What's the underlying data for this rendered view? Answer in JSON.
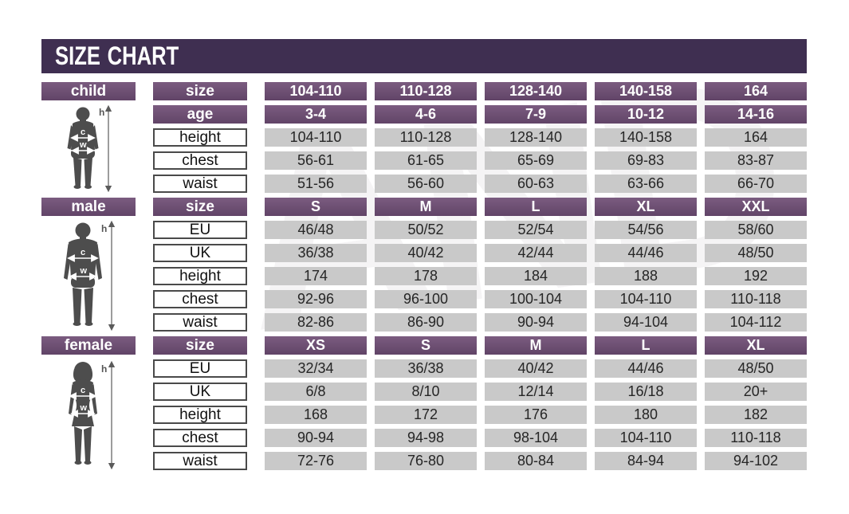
{
  "title": "SIZE CHART",
  "watermark": "AND",
  "colors": {
    "title_bar": "#3F2F51",
    "header_cell": "#6F5173",
    "value_cell": "#C9C9C9",
    "silhouette": "#4D4D4D"
  },
  "figure_annotations": {
    "height_label": "h",
    "chest_label": "c",
    "waist_label": "w"
  },
  "sections": [
    {
      "name": "child",
      "rows": [
        {
          "label": "size",
          "style": "purple",
          "values": [
            "104-110",
            "110-128",
            "128-140",
            "140-158",
            "164"
          ]
        },
        {
          "label": "age",
          "style": "purple",
          "values": [
            "3-4",
            "4-6",
            "7-9",
            "10-12",
            "14-16"
          ]
        },
        {
          "label": "height",
          "style": "plain",
          "values": [
            "104-110",
            "110-128",
            "128-140",
            "140-158",
            "164"
          ]
        },
        {
          "label": "chest",
          "style": "plain",
          "values": [
            "56-61",
            "61-65",
            "65-69",
            "69-83",
            "83-87"
          ]
        },
        {
          "label": "waist",
          "style": "plain",
          "values": [
            "51-56",
            "56-60",
            "60-63",
            "63-66",
            "66-70"
          ]
        }
      ]
    },
    {
      "name": "male",
      "rows": [
        {
          "label": "size",
          "style": "purple",
          "values": [
            "S",
            "M",
            "L",
            "XL",
            "XXL"
          ]
        },
        {
          "label": "EU",
          "style": "plain",
          "values": [
            "46/48",
            "50/52",
            "52/54",
            "54/56",
            "58/60"
          ]
        },
        {
          "label": "UK",
          "style": "plain",
          "values": [
            "36/38",
            "40/42",
            "42/44",
            "44/46",
            "48/50"
          ]
        },
        {
          "label": "height",
          "style": "plain",
          "values": [
            "174",
            "178",
            "184",
            "188",
            "192"
          ]
        },
        {
          "label": "chest",
          "style": "plain",
          "values": [
            "92-96",
            "96-100",
            "100-104",
            "104-110",
            "110-118"
          ]
        },
        {
          "label": "waist",
          "style": "plain",
          "values": [
            "82-86",
            "86-90",
            "90-94",
            "94-104",
            "104-112"
          ]
        }
      ]
    },
    {
      "name": "female",
      "rows": [
        {
          "label": "size",
          "style": "purple",
          "values": [
            "XS",
            "S",
            "M",
            "L",
            "XL"
          ]
        },
        {
          "label": "EU",
          "style": "plain",
          "values": [
            "32/34",
            "36/38",
            "40/42",
            "44/46",
            "48/50"
          ]
        },
        {
          "label": "UK",
          "style": "plain",
          "values": [
            "6/8",
            "8/10",
            "12/14",
            "16/18",
            "20+"
          ]
        },
        {
          "label": "height",
          "style": "plain",
          "values": [
            "168",
            "172",
            "176",
            "180",
            "182"
          ]
        },
        {
          "label": "chest",
          "style": "plain",
          "values": [
            "90-94",
            "94-98",
            "98-104",
            "104-110",
            "110-118"
          ]
        },
        {
          "label": "waist",
          "style": "plain",
          "values": [
            "72-76",
            "76-80",
            "80-84",
            "84-94",
            "94-102"
          ]
        }
      ]
    }
  ]
}
